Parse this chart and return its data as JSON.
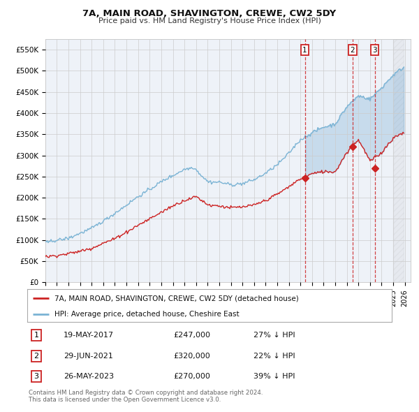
{
  "title": "7A, MAIN ROAD, SHAVINGTON, CREWE, CW2 5DY",
  "subtitle": "Price paid vs. HM Land Registry's House Price Index (HPI)",
  "ylabel_ticks": [
    "£0",
    "£50K",
    "£100K",
    "£150K",
    "£200K",
    "£250K",
    "£300K",
    "£350K",
    "£400K",
    "£450K",
    "£500K",
    "£550K"
  ],
  "ylim": [
    0,
    575000
  ],
  "xlim_start": 1995.0,
  "xlim_end": 2026.5,
  "hpi_color": "#7ab3d4",
  "price_color": "#cc2222",
  "sale_marker_color": "#cc2222",
  "grid_color": "#cccccc",
  "background_color": "#ffffff",
  "plot_bg_color": "#eef2f8",
  "shade_start": 2017.38,
  "sales": [
    {
      "date_num": 2017.38,
      "price": 247000,
      "label": "1"
    },
    {
      "date_num": 2021.49,
      "price": 320000,
      "label": "2"
    },
    {
      "date_num": 2023.4,
      "price": 270000,
      "label": "3"
    }
  ],
  "sale_labels": [
    {
      "label": "1",
      "date": "19-MAY-2017",
      "price": "£247,000",
      "pct": "27% ↓ HPI"
    },
    {
      "label": "2",
      "date": "29-JUN-2021",
      "price": "£320,000",
      "pct": "22% ↓ HPI"
    },
    {
      "label": "3",
      "date": "26-MAY-2023",
      "price": "£270,000",
      "pct": "39% ↓ HPI"
    }
  ],
  "legend_line1": "7A, MAIN ROAD, SHAVINGTON, CREWE, CW2 5DY (detached house)",
  "legend_line2": "HPI: Average price, detached house, Cheshire East",
  "footnote": "Contains HM Land Registry data © Crown copyright and database right 2024.\nThis data is licensed under the Open Government Licence v3.0."
}
